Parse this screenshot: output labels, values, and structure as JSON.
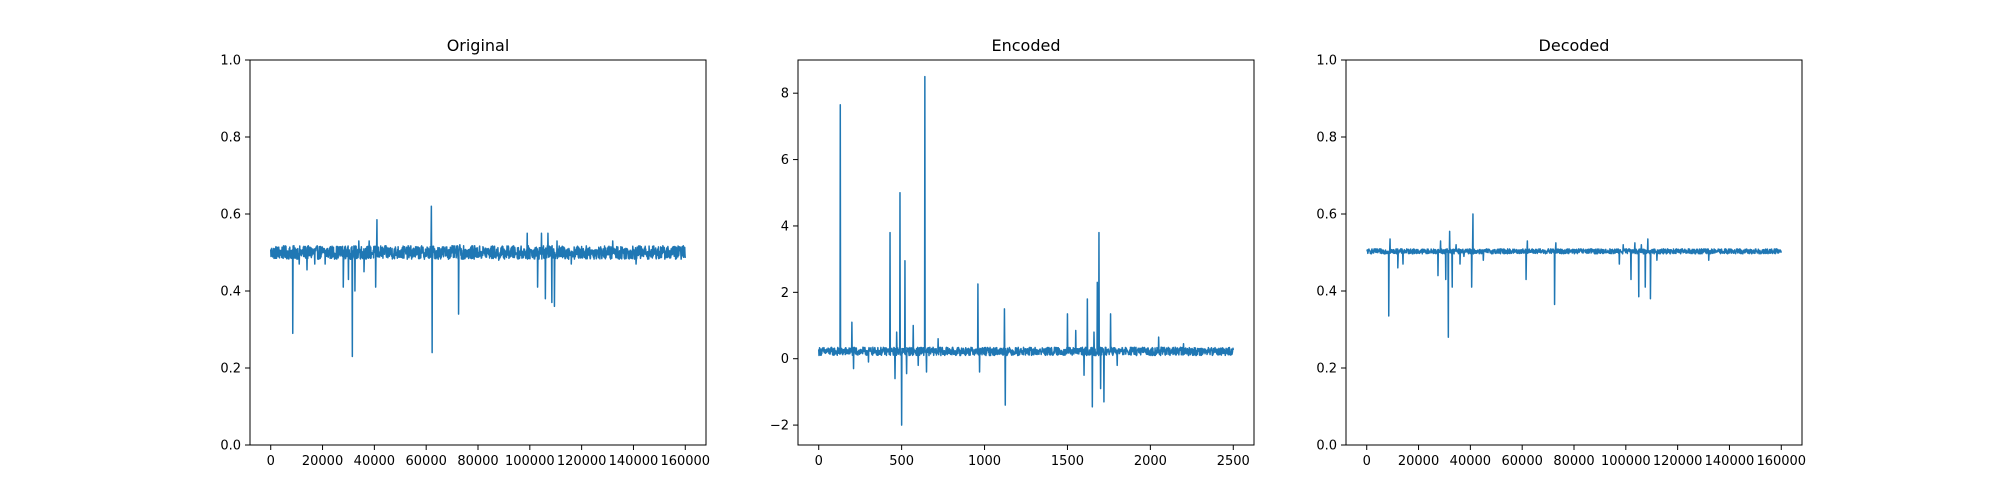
{
  "figure": {
    "background": "#ffffff",
    "series_color": "#1f77b4"
  },
  "chart_data": [
    {
      "type": "line",
      "title": "Original",
      "xlabel": "",
      "ylabel": "",
      "grid": false,
      "xlim": [
        -8000,
        168000
      ],
      "ylim": [
        0.0,
        1.0
      ],
      "xticks": [
        0,
        20000,
        40000,
        60000,
        80000,
        100000,
        120000,
        140000,
        160000
      ],
      "yticks": [
        0.0,
        0.2,
        0.4,
        0.6,
        0.8,
        1.0
      ],
      "xtick_labels": [
        "0",
        "20000",
        "40000",
        "60000",
        "80000",
        "100000",
        "120000",
        "140000",
        "160000"
      ],
      "ytick_labels": [
        "0.0",
        "0.2",
        "0.4",
        "0.6",
        "0.8",
        "1.0"
      ],
      "series": [
        {
          "x_range": [
            0,
            160000
          ],
          "baseline": 0.5,
          "band": [
            0.485,
            0.52
          ],
          "spikes": [
            [
              8500,
              0.29
            ],
            [
              11000,
              0.47
            ],
            [
              14000,
              0.455
            ],
            [
              17000,
              0.47
            ],
            [
              21000,
              0.47
            ],
            [
              28000,
              0.41
            ],
            [
              30000,
              0.43
            ],
            [
              31500,
              0.23
            ],
            [
              32500,
              0.4
            ],
            [
              34000,
              0.53
            ],
            [
              36000,
              0.45
            ],
            [
              38000,
              0.53
            ],
            [
              40500,
              0.41
            ],
            [
              41000,
              0.585
            ],
            [
              62000,
              0.62
            ],
            [
              62300,
              0.24
            ],
            [
              72500,
              0.34
            ],
            [
              73000,
              0.52
            ],
            [
              88000,
              0.48
            ],
            [
              99000,
              0.55
            ],
            [
              103000,
              0.41
            ],
            [
              104500,
              0.55
            ],
            [
              106000,
              0.38
            ],
            [
              107000,
              0.55
            ],
            [
              108500,
              0.37
            ],
            [
              109500,
              0.36
            ],
            [
              110500,
              0.53
            ],
            [
              116000,
              0.47
            ],
            [
              132000,
              0.53
            ],
            [
              141000,
              0.47
            ]
          ]
        }
      ]
    },
    {
      "type": "line",
      "title": "Encoded",
      "xlabel": "",
      "ylabel": "",
      "grid": false,
      "xlim": [
        -125,
        2625
      ],
      "ylim": [
        -2.6,
        9.0
      ],
      "xticks": [
        0,
        500,
        1000,
        1500,
        2000,
        2500
      ],
      "yticks": [
        -2,
        0,
        2,
        4,
        6,
        8
      ],
      "xtick_labels": [
        "0",
        "500",
        "1000",
        "1500",
        "2000",
        "2500"
      ],
      "ytick_labels": [
        "−2",
        "0",
        "2",
        "4",
        "6",
        "8"
      ],
      "series": [
        {
          "x_range": [
            0,
            2500
          ],
          "baseline": 0.22,
          "band": [
            0.1,
            0.35
          ],
          "spikes": [
            [
              130,
              7.65
            ],
            [
              200,
              1.1
            ],
            [
              210,
              -0.3
            ],
            [
              300,
              -0.1
            ],
            [
              430,
              3.8
            ],
            [
              460,
              -0.6
            ],
            [
              470,
              0.8
            ],
            [
              490,
              5.0
            ],
            [
              500,
              -2.0
            ],
            [
              520,
              2.95
            ],
            [
              530,
              -0.45
            ],
            [
              570,
              1.0
            ],
            [
              600,
              -0.2
            ],
            [
              640,
              8.5
            ],
            [
              650,
              -0.4
            ],
            [
              720,
              0.6
            ],
            [
              960,
              2.25
            ],
            [
              970,
              -0.4
            ],
            [
              1120,
              1.5
            ],
            [
              1125,
              -1.4
            ],
            [
              1500,
              1.35
            ],
            [
              1550,
              0.85
            ],
            [
              1600,
              -0.5
            ],
            [
              1620,
              1.8
            ],
            [
              1650,
              -1.45
            ],
            [
              1660,
              0.8
            ],
            [
              1680,
              2.3
            ],
            [
              1690,
              3.8
            ],
            [
              1700,
              -0.9
            ],
            [
              1720,
              -1.3
            ],
            [
              1760,
              1.35
            ],
            [
              1800,
              -0.2
            ],
            [
              2050,
              0.65
            ],
            [
              2200,
              0.45
            ]
          ]
        }
      ]
    },
    {
      "type": "line",
      "title": "Decoded",
      "xlabel": "",
      "ylabel": "",
      "grid": false,
      "xlim": [
        -8000,
        168000
      ],
      "ylim": [
        0.0,
        1.0
      ],
      "xticks": [
        0,
        20000,
        40000,
        60000,
        80000,
        100000,
        120000,
        140000,
        160000
      ],
      "yticks": [
        0.0,
        0.2,
        0.4,
        0.6,
        0.8,
        1.0
      ],
      "xtick_labels": [
        "0",
        "20000",
        "40000",
        "60000",
        "80000",
        "100000",
        "120000",
        "140000",
        "160000"
      ],
      "ytick_labels": [
        "0.0",
        "0.2",
        "0.4",
        "0.6",
        "0.8",
        "1.0"
      ],
      "series": [
        {
          "x_range": [
            0,
            160000
          ],
          "baseline": 0.503,
          "band": [
            0.497,
            0.51
          ],
          "spikes": [
            [
              8500,
              0.335
            ],
            [
              9000,
              0.535
            ],
            [
              12000,
              0.46
            ],
            [
              14000,
              0.47
            ],
            [
              27500,
              0.44
            ],
            [
              28500,
              0.53
            ],
            [
              30500,
              0.43
            ],
            [
              31500,
              0.28
            ],
            [
              32000,
              0.555
            ],
            [
              33000,
              0.41
            ],
            [
              34500,
              0.52
            ],
            [
              36000,
              0.47
            ],
            [
              37500,
              0.49
            ],
            [
              40500,
              0.41
            ],
            [
              41000,
              0.6
            ],
            [
              45000,
              0.48
            ],
            [
              61500,
              0.43
            ],
            [
              62000,
              0.53
            ],
            [
              72500,
              0.365
            ],
            [
              73000,
              0.525
            ],
            [
              97500,
              0.47
            ],
            [
              99000,
              0.52
            ],
            [
              102000,
              0.43
            ],
            [
              103500,
              0.525
            ],
            [
              105000,
              0.385
            ],
            [
              106000,
              0.52
            ],
            [
              107500,
              0.41
            ],
            [
              108500,
              0.535
            ],
            [
              109500,
              0.38
            ],
            [
              112000,
              0.48
            ],
            [
              132000,
              0.48
            ]
          ]
        }
      ]
    }
  ]
}
